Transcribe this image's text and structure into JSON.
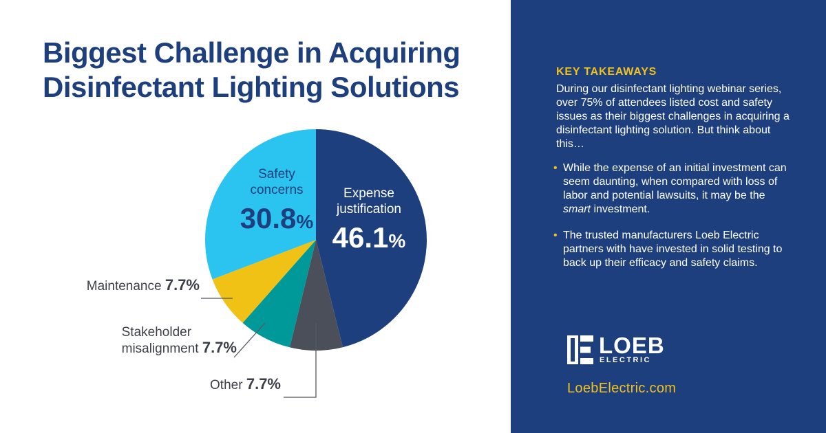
{
  "title_line1": "Biggest Challenge in Acquiring",
  "title_line2": "Disinfectant Lighting Solutions",
  "chart_data": {
    "type": "pie",
    "title": "Biggest Challenge in Acquiring Disinfectant Lighting Solutions",
    "slices": [
      {
        "label": "Expense justification",
        "value": 46.1,
        "display": "46.1",
        "color": "#1e3f7d"
      },
      {
        "label": "Other",
        "value": 7.7,
        "display": "7.7",
        "color": "#4a4f5a"
      },
      {
        "label": "Stakeholder misalignment",
        "value": 7.7,
        "display": "7.7",
        "color": "#00999a"
      },
      {
        "label": "Maintenance",
        "value": 7.7,
        "display": "7.7",
        "color": "#efc215"
      },
      {
        "label": "Safety concerns",
        "value": 30.8,
        "display": "30.8",
        "color": "#2bc3f0"
      }
    ],
    "unit": "%"
  },
  "labels": {
    "expense_l1": "Expense",
    "expense_l2": "justification",
    "expense_val": "46.1",
    "safety_l1": "Safety",
    "safety_l2": "concerns",
    "safety_val": "30.8",
    "maintenance": "Maintenance",
    "maintenance_val": "7.7%",
    "stakeholder_l1": "Stakeholder",
    "stakeholder_l2": "misalignment",
    "stakeholder_val": "7.7%",
    "other": "Other",
    "other_val": "7.7%",
    "pct_sign": "%"
  },
  "sidebar": {
    "heading": "KEY TAKEAWAYS",
    "intro": "During our disinfectant lighting webinar series, over 75% of attendees listed cost and safety issues as their biggest challenges in acquiring a disinfectant lighting solution. But think about this…",
    "bullet_char": "•",
    "bullet1_a": "While the expense of an initial investment can seem daunting, when compared with loss of labor and potential lawsuits, it may be the ",
    "bullet1_em": "smart",
    "bullet1_b": " investment.",
    "bullet2": "The trusted manufacturers Loeb Electric partners with have invested in solid testing to back up their efficacy and safety claims.",
    "logo_word": "LOEB",
    "logo_sub": "ELECTRIC",
    "website": "LoebElectric.com"
  }
}
